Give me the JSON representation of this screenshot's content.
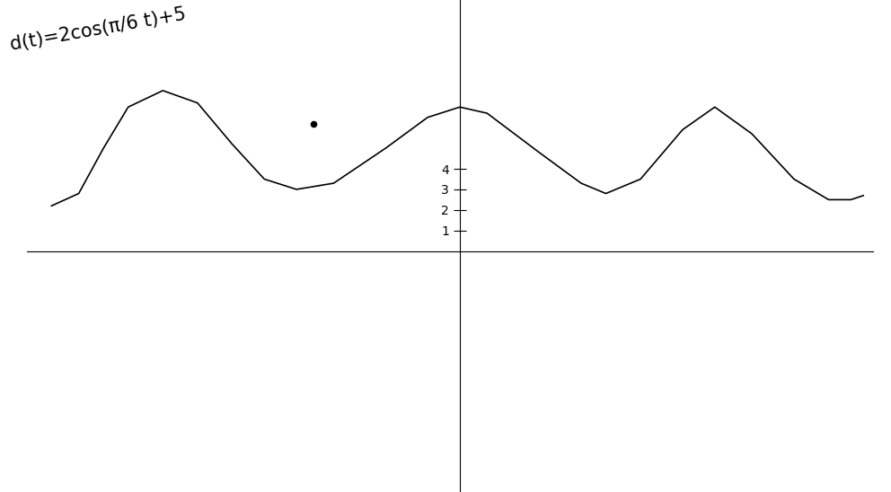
{
  "chart_data": {
    "type": "line",
    "title": "d(t)=2cos(π/6 t)+5",
    "series": [
      {
        "type": "line",
        "color": "#000000",
        "line_style": "solid",
        "x": [
          -16.5,
          -15.4,
          -14.4,
          -13.4,
          -12.0,
          -10.6,
          -9.2,
          -7.9,
          -6.6,
          -5.1,
          -3.0,
          -1.3,
          0.0,
          1.1,
          3.2,
          4.9,
          5.9,
          7.3,
          9.0,
          10.3,
          11.8,
          13.5,
          14.9,
          15.8,
          16.3
        ],
        "values": [
          2.2,
          2.8,
          5.0,
          7.0,
          7.8,
          7.2,
          5.2,
          3.5,
          3.0,
          3.3,
          5.0,
          6.5,
          7.0,
          6.7,
          4.8,
          3.3,
          2.8,
          3.5,
          5.9,
          7.0,
          5.7,
          3.5,
          2.5,
          2.5,
          2.7
        ]
      },
      {
        "type": "scatter",
        "color": "#000000",
        "marker": "o",
        "x": [
          -5.9
        ],
        "values": [
          6.2
        ]
      }
    ],
    "xlim": [
      -17.5,
      16.7
    ],
    "ylim": [
      -11.7,
      12.2
    ],
    "xticks": [],
    "yticks": [
      1,
      2,
      3,
      4
    ],
    "tick_labels": "y",
    "grid": false
  }
}
